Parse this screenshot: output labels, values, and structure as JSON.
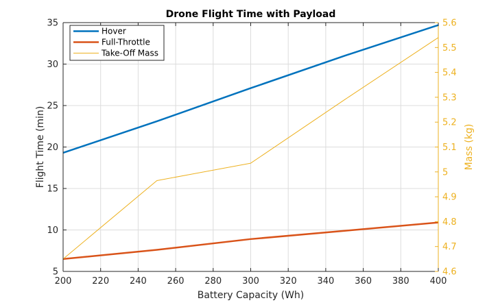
{
  "chart_data": {
    "type": "line",
    "title": "Drone Flight Time with Payload",
    "xlabel": "Battery Capacity (Wh)",
    "ylabel": "Flight Time (min)",
    "y2label": "Mass (kg)",
    "xlim": [
      200,
      400
    ],
    "ylim": [
      5,
      35
    ],
    "y2lim": [
      4.6,
      5.6
    ],
    "xticks": [
      200,
      220,
      240,
      260,
      280,
      300,
      320,
      340,
      360,
      380,
      400
    ],
    "yticks": [
      5,
      10,
      15,
      20,
      25,
      30,
      35
    ],
    "y2ticks": [
      4.6,
      4.7,
      4.8,
      4.9,
      5,
      5.1,
      5.2,
      5.3,
      5.4,
      5.5,
      5.6
    ],
    "grid": true,
    "legend_position": "top-left",
    "x": [
      200,
      250,
      300,
      350,
      400
    ],
    "series": [
      {
        "name": "Hover",
        "axis": "left",
        "color": "#0072BD",
        "values": [
          19.3,
          23.1,
          27.1,
          31.0,
          34.7
        ]
      },
      {
        "name": "Full-Throttle",
        "axis": "left",
        "color": "#D95319",
        "values": [
          6.5,
          7.6,
          8.9,
          9.9,
          10.9
        ]
      },
      {
        "name": "Take-Off Mass",
        "axis": "right",
        "color": "#EDB120",
        "values": [
          4.65,
          4.965,
          5.035,
          5.29,
          5.54
        ]
      }
    ]
  }
}
